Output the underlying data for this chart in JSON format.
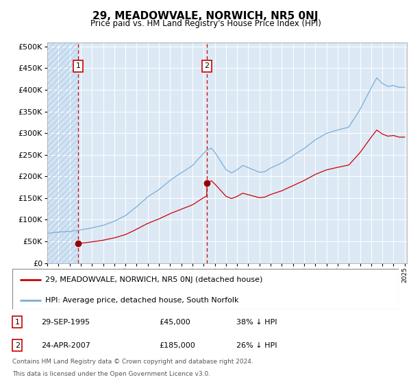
{
  "title": "29, MEADOWVALE, NORWICH, NR5 0NJ",
  "subtitle": "Price paid vs. HM Land Registry's House Price Index (HPI)",
  "bg_color": "#dce9f5",
  "hatch_color": "#c8d8ec",
  "grid_color": "#ffffff",
  "red_line_color": "#cc0000",
  "blue_line_color": "#7aadd4",
  "marker_color": "#990000",
  "sale1_year": 1995.75,
  "sale1_price": 45000,
  "sale2_year": 2007.3,
  "sale2_price": 185000,
  "ylim_max": 510000,
  "ylim_min": 0,
  "legend_entry1": "29, MEADOWVALE, NORWICH, NR5 0NJ (detached house)",
  "legend_entry2": "HPI: Average price, detached house, South Norfolk",
  "footnote_line1": "Contains HM Land Registry data © Crown copyright and database right 2024.",
  "footnote_line2": "This data is licensed under the Open Government Licence v3.0.",
  "table_row1_num": "1",
  "table_row1_date": "29-SEP-1995",
  "table_row1_price": "£45,000",
  "table_row1_hpi": "38% ↓ HPI",
  "table_row2_num": "2",
  "table_row2_date": "24-APR-2007",
  "table_row2_price": "£185,000",
  "table_row2_hpi": "26% ↓ HPI"
}
